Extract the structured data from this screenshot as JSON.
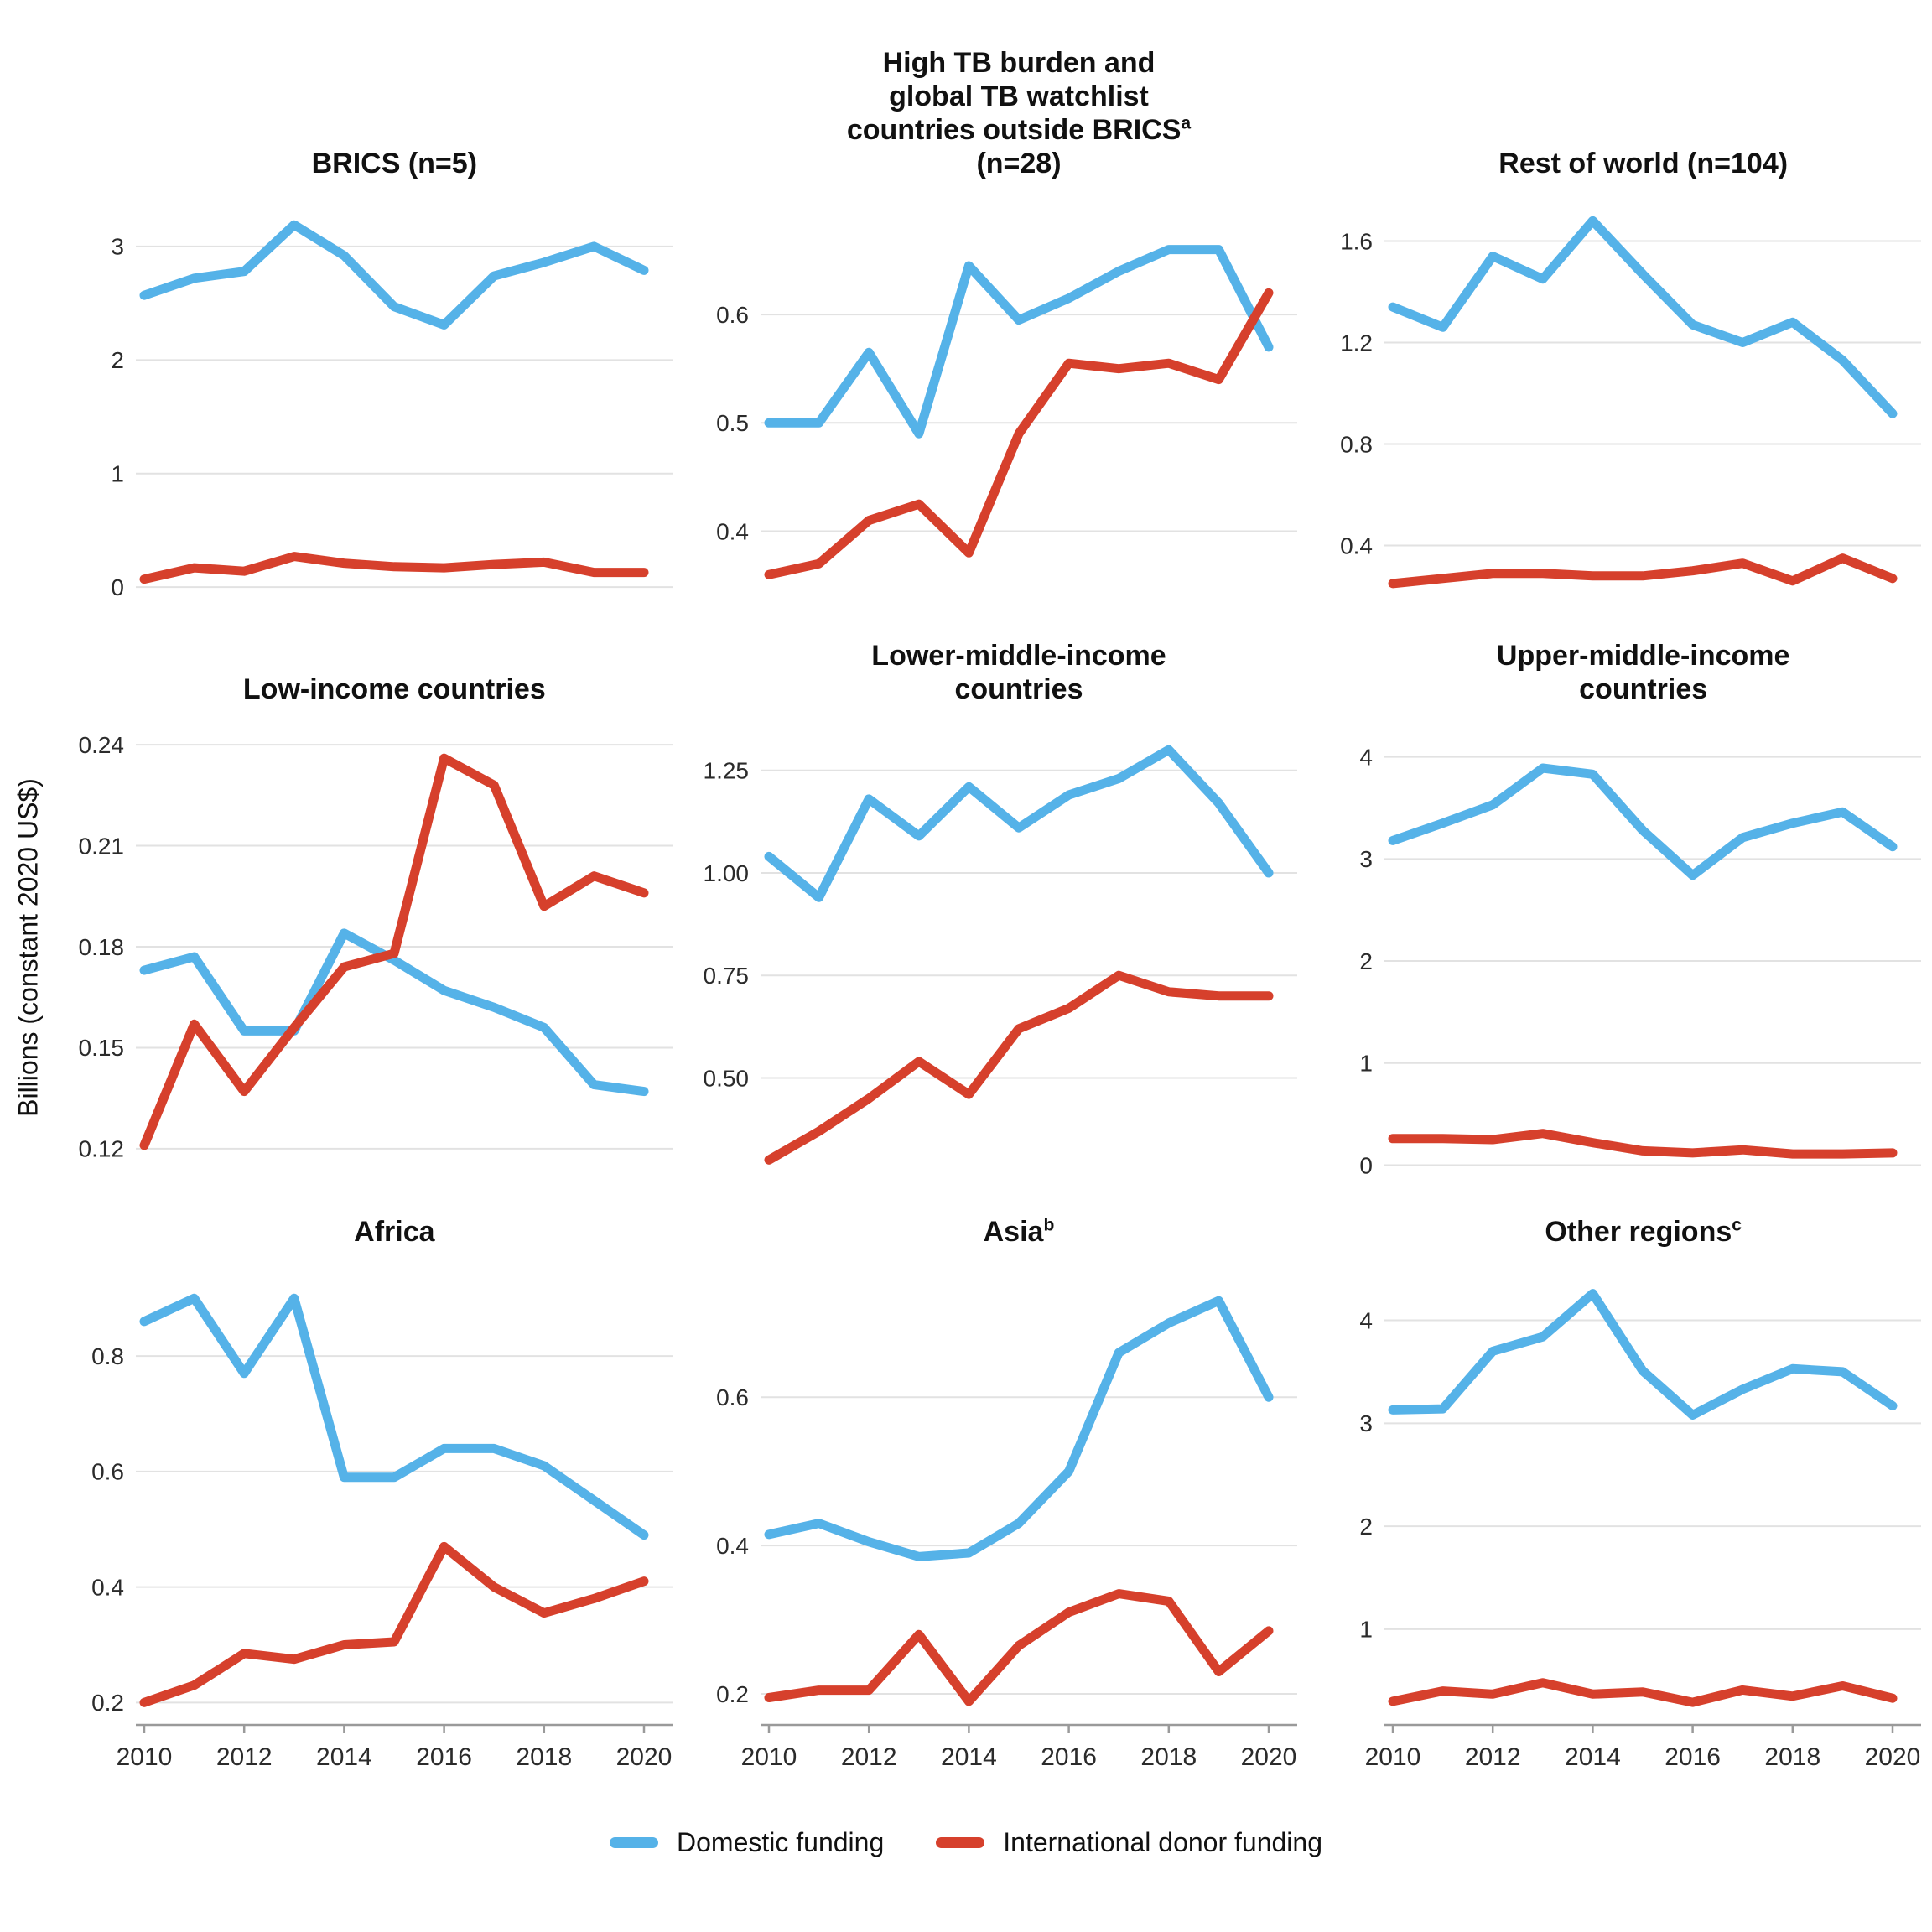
{
  "chart_data": {
    "type": "line",
    "layout": {
      "rows": 3,
      "cols": 3,
      "grid": "horizontal gridlines only",
      "x_axis_shown": "bottom row only",
      "legend_position": "bottom center"
    },
    "y_axis_label": "Billions (constant 2020 US$)",
    "colors": {
      "domestic": "#55b2e8",
      "donor": "#d6402c",
      "gridline": "#e2e2e2",
      "axis": "#9a9a9a"
    },
    "x_years": [
      2010,
      2011,
      2012,
      2013,
      2014,
      2015,
      2016,
      2017,
      2018,
      2019,
      2020
    ],
    "x_tick_labels": [
      "2010",
      "2012",
      "2014",
      "2016",
      "2018",
      "2020"
    ],
    "legend": [
      {
        "label": "Domestic funding",
        "color_key": "domestic"
      },
      {
        "label": "International donor funding",
        "color_key": "donor"
      }
    ],
    "panels": [
      {
        "title_lines": [
          {
            "text": "BRICS (n=5)"
          }
        ],
        "y_ticks": [
          {
            "label": "0",
            "value": 0
          },
          {
            "label": "1",
            "value": 1
          },
          {
            "label": "2",
            "value": 2
          },
          {
            "label": "3",
            "value": 3
          }
        ],
        "y_domain": [
          -0.08,
          3.45
        ],
        "series": [
          {
            "name": "Domestic funding",
            "color_key": "domestic",
            "values": [
              2.57,
              2.72,
              2.78,
              3.19,
              2.92,
              2.47,
              2.31,
              2.74,
              2.86,
              3.0,
              2.79
            ]
          },
          {
            "name": "International donor funding",
            "color_key": "donor",
            "values": [
              0.07,
              0.17,
              0.14,
              0.27,
              0.21,
              0.18,
              0.17,
              0.2,
              0.22,
              0.13,
              0.13
            ]
          }
        ]
      },
      {
        "title_lines": [
          {
            "text": "High TB burden and"
          },
          {
            "text": "global TB watchlist"
          },
          {
            "text": "countries outside BRICS",
            "sup": "a"
          },
          {
            "text": "(n=28)"
          }
        ],
        "y_ticks": [
          {
            "label": "0.4",
            "value": 0.4
          },
          {
            "label": "0.5",
            "value": 0.5
          },
          {
            "label": "0.6",
            "value": 0.6
          }
        ],
        "y_domain": [
          0.34,
          0.71
        ],
        "series": [
          {
            "name": "Domestic funding",
            "color_key": "domestic",
            "values": [
              0.5,
              0.5,
              0.565,
              0.49,
              0.645,
              0.595,
              0.615,
              0.64,
              0.66,
              0.66,
              0.57
            ]
          },
          {
            "name": "International donor funding",
            "color_key": "donor",
            "values": [
              0.36,
              0.37,
              0.41,
              0.425,
              0.38,
              0.49,
              0.555,
              0.55,
              0.555,
              0.54,
              0.62
            ]
          }
        ]
      },
      {
        "title_lines": [
          {
            "text": "Rest of world (n=104)"
          }
        ],
        "y_ticks": [
          {
            "label": "0.4",
            "value": 0.4
          },
          {
            "label": "0.8",
            "value": 0.8
          },
          {
            "label": "1.2",
            "value": 1.2
          },
          {
            "label": "1.6",
            "value": 1.6
          }
        ],
        "y_domain": [
          0.2,
          1.78
        ],
        "series": [
          {
            "name": "Domestic funding",
            "color_key": "domestic",
            "values": [
              1.34,
              1.26,
              1.54,
              1.45,
              1.68,
              1.47,
              1.27,
              1.2,
              1.28,
              1.13,
              0.92
            ]
          },
          {
            "name": "International donor funding",
            "color_key": "donor",
            "values": [
              0.25,
              0.27,
              0.29,
              0.29,
              0.28,
              0.28,
              0.3,
              0.33,
              0.26,
              0.35,
              0.27
            ]
          }
        ]
      },
      {
        "title_lines": [
          {
            "text": "Low-income countries"
          }
        ],
        "y_ticks": [
          {
            "label": "0.12",
            "value": 0.12
          },
          {
            "label": "0.15",
            "value": 0.15
          },
          {
            "label": "0.18",
            "value": 0.18
          },
          {
            "label": "0.21",
            "value": 0.21
          },
          {
            "label": "0.24",
            "value": 0.24
          }
        ],
        "y_domain": [
          0.113,
          0.247
        ],
        "series": [
          {
            "name": "Domestic funding",
            "color_key": "domestic",
            "values": [
              0.173,
              0.177,
              0.155,
              0.155,
              0.184,
              0.176,
              0.167,
              0.162,
              0.156,
              0.139,
              0.137
            ]
          },
          {
            "name": "International donor funding",
            "color_key": "donor",
            "values": [
              0.121,
              0.157,
              0.137,
              0.156,
              0.174,
              0.178,
              0.236,
              0.228,
              0.192,
              0.201,
              0.196
            ]
          }
        ]
      },
      {
        "title_lines": [
          {
            "text": "Lower-middle-income"
          },
          {
            "text": "countries"
          }
        ],
        "y_ticks": [
          {
            "label": "0.50",
            "value": 0.5
          },
          {
            "label": "0.75",
            "value": 0.75
          },
          {
            "label": "1.00",
            "value": 1.0
          },
          {
            "label": "1.25",
            "value": 1.25
          }
        ],
        "y_domain": [
          0.27,
          1.37
        ],
        "series": [
          {
            "name": "Domestic funding",
            "color_key": "domestic",
            "values": [
              1.04,
              0.94,
              1.18,
              1.09,
              1.21,
              1.11,
              1.19,
              1.23,
              1.3,
              1.17,
              1.0
            ]
          },
          {
            "name": "International donor funding",
            "color_key": "donor",
            "values": [
              0.3,
              0.37,
              0.45,
              0.54,
              0.46,
              0.62,
              0.67,
              0.75,
              0.71,
              0.7,
              0.7
            ]
          }
        ]
      },
      {
        "title_lines": [
          {
            "text": "Upper-middle-income"
          },
          {
            "text": "countries"
          }
        ],
        "y_ticks": [
          {
            "label": "0",
            "value": 0
          },
          {
            "label": "1",
            "value": 1
          },
          {
            "label": "2",
            "value": 2
          },
          {
            "label": "3",
            "value": 3
          },
          {
            "label": "4",
            "value": 4
          }
        ],
        "y_domain": [
          -0.07,
          4.35
        ],
        "series": [
          {
            "name": "Domestic funding",
            "color_key": "domestic",
            "values": [
              3.18,
              3.35,
              3.53,
              3.89,
              3.83,
              3.28,
              2.84,
              3.21,
              3.35,
              3.46,
              3.12
            ]
          },
          {
            "name": "International donor funding",
            "color_key": "donor",
            "values": [
              0.26,
              0.26,
              0.25,
              0.31,
              0.22,
              0.14,
              0.12,
              0.15,
              0.11,
              0.11,
              0.12
            ]
          }
        ]
      },
      {
        "title_lines": [
          {
            "text": "Africa"
          }
        ],
        "y_ticks": [
          {
            "label": "0.2",
            "value": 0.2
          },
          {
            "label": "0.4",
            "value": 0.4
          },
          {
            "label": "0.6",
            "value": 0.6
          },
          {
            "label": "0.8",
            "value": 0.8
          }
        ],
        "y_domain": [
          0.17,
          0.96
        ],
        "series": [
          {
            "name": "Domestic funding",
            "color_key": "domestic",
            "values": [
              0.86,
              0.9,
              0.77,
              0.9,
              0.59,
              0.59,
              0.64,
              0.64,
              0.61,
              0.55,
              0.49
            ]
          },
          {
            "name": "International donor funding",
            "color_key": "donor",
            "values": [
              0.2,
              0.23,
              0.285,
              0.275,
              0.3,
              0.305,
              0.47,
              0.4,
              0.355,
              0.38,
              0.41
            ]
          }
        ]
      },
      {
        "title_lines": [
          {
            "text": "Asia",
            "sup": "b"
          }
        ],
        "y_ticks": [
          {
            "label": "0.2",
            "value": 0.2
          },
          {
            "label": "0.4",
            "value": 0.4
          },
          {
            "label": "0.6",
            "value": 0.6
          }
        ],
        "y_domain": [
          0.165,
          0.78
        ],
        "series": [
          {
            "name": "Domestic funding",
            "color_key": "domestic",
            "values": [
              0.415,
              0.43,
              0.405,
              0.385,
              0.39,
              0.43,
              0.5,
              0.66,
              0.7,
              0.73,
              0.6
            ]
          },
          {
            "name": "International donor funding",
            "color_key": "donor",
            "values": [
              0.195,
              0.205,
              0.205,
              0.28,
              0.19,
              0.265,
              0.31,
              0.335,
              0.325,
              0.23,
              0.285
            ]
          }
        ]
      },
      {
        "title_lines": [
          {
            "text": "Other regions",
            "sup": "c"
          }
        ],
        "y_ticks": [
          {
            "label": "1",
            "value": 1
          },
          {
            "label": "2",
            "value": 2
          },
          {
            "label": "3",
            "value": 3
          },
          {
            "label": "4",
            "value": 4
          }
        ],
        "y_domain": [
          0.12,
          4.55
        ],
        "series": [
          {
            "name": "Domestic funding",
            "color_key": "domestic",
            "values": [
              3.13,
              3.14,
              3.7,
              3.84,
              4.26,
              3.51,
              3.08,
              3.33,
              3.53,
              3.5,
              3.17
            ]
          },
          {
            "name": "International donor funding",
            "color_key": "donor",
            "values": [
              0.3,
              0.4,
              0.37,
              0.48,
              0.37,
              0.39,
              0.29,
              0.41,
              0.35,
              0.45,
              0.33
            ]
          }
        ]
      }
    ]
  }
}
